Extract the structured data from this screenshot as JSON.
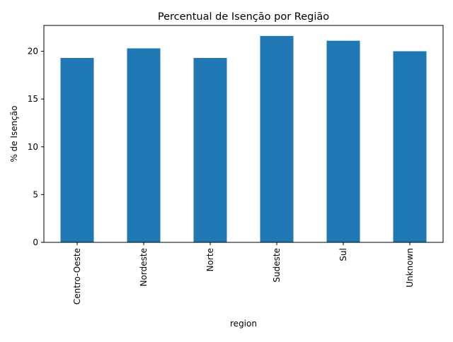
{
  "chart_data": {
    "type": "bar",
    "title": "Percentual de Isenção por Região",
    "xlabel": "region",
    "ylabel": "% de Isenção",
    "categories": [
      "Centro-Oeste",
      "Nordeste",
      "Norte",
      "Sudeste",
      "Sul",
      "Unknown"
    ],
    "values": [
      19.3,
      20.3,
      19.3,
      21.6,
      21.1,
      20.0
    ],
    "ylim": [
      0,
      22.7
    ],
    "yticks": [
      0,
      5,
      10,
      15,
      20
    ],
    "bar_color": "#1f77b4",
    "grid": false,
    "legend": false
  }
}
